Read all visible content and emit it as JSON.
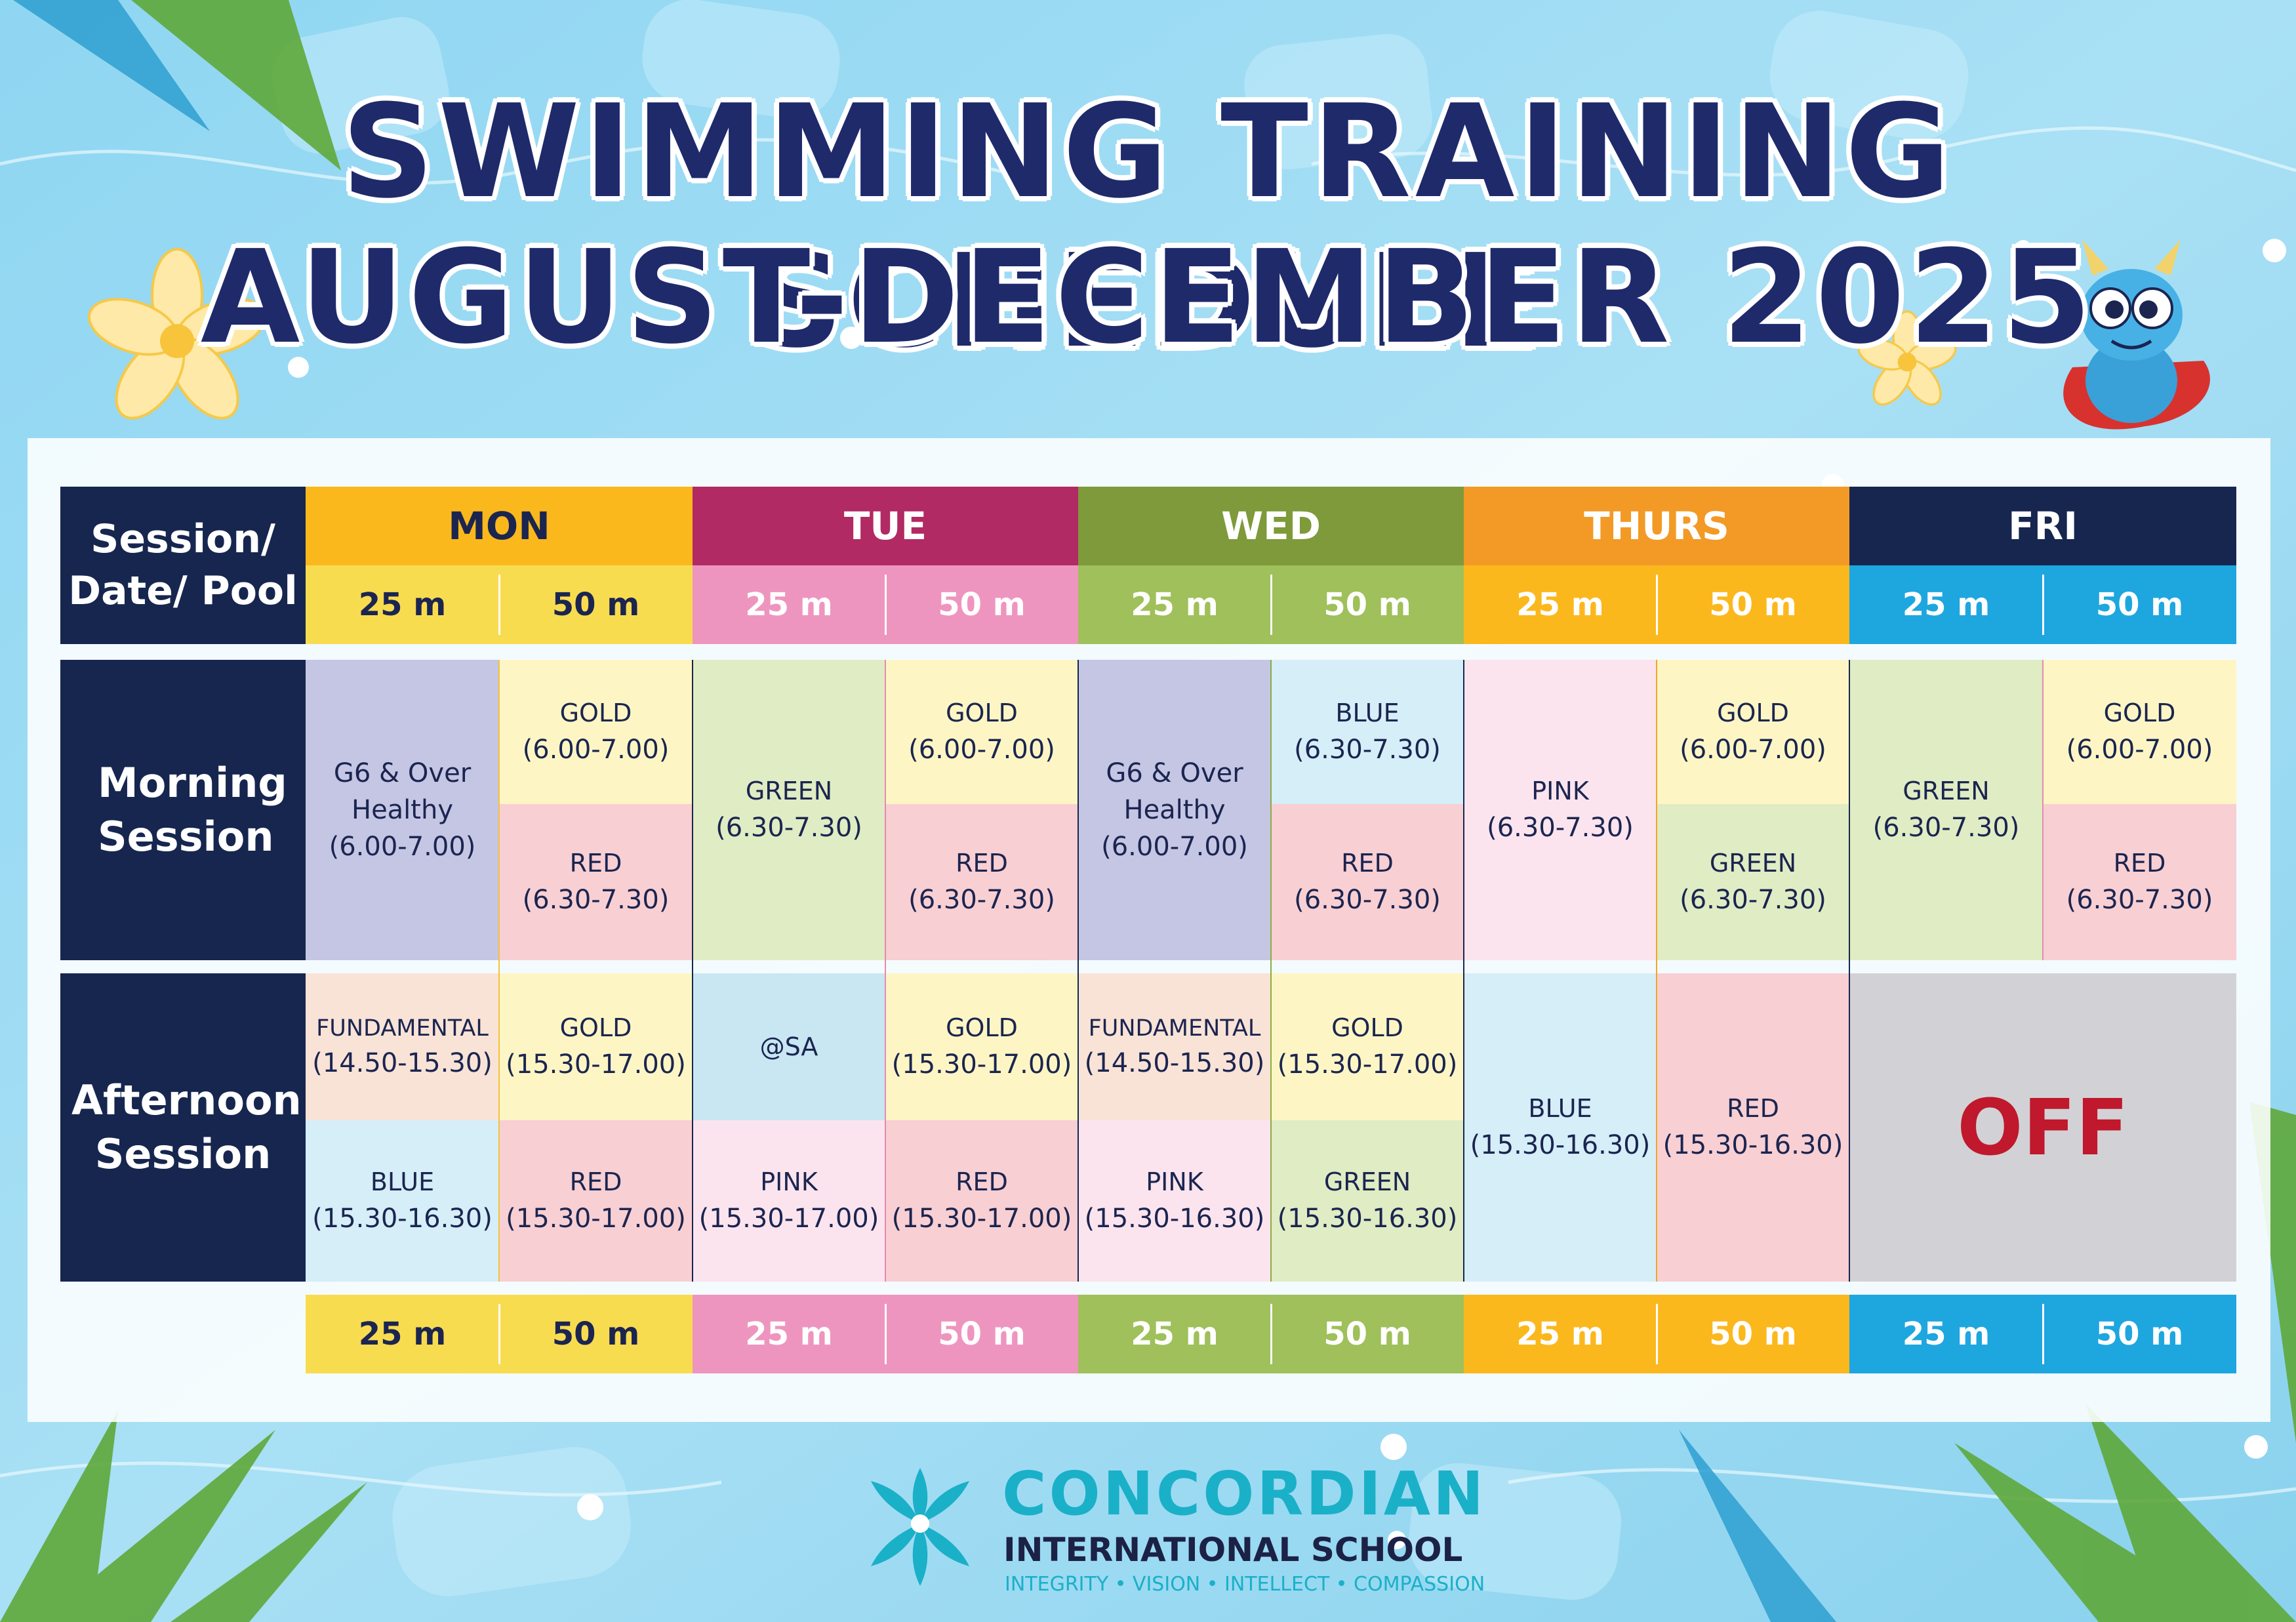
{
  "title": {
    "line1": "SWIMMING TRAINING SCHEDULE",
    "line2": "AUGUST-DECEMBER 2025"
  },
  "colors": {
    "navy": "#16264f",
    "mon_day": "#fbb81d",
    "mon_pool": "#f8dc50",
    "tue_day": "#b12a63",
    "tue_pool": "#ee95bf",
    "wed_day": "#7e9a3a",
    "wed_pool": "#9fc05a",
    "thu_day": "#f29a25",
    "thu_pool": "#fbb81d",
    "fri_day": "#16264f",
    "fri_pool": "#1ea6df",
    "lavender": "#c5c6e4",
    "pale_yellow": "#fdf6c4",
    "pale_red": "#f8cfd3",
    "pale_green": "#e0ecc3",
    "pale_blue": "#d5eef8",
    "pale_pink": "#fbe4ee",
    "pale_peach": "#f8e3d6",
    "pale_sky": "#c9e6f3",
    "off_gray": "#d2d2d6",
    "off_text": "#c0182c",
    "brand_teal": "#1ab0c8"
  },
  "table": {
    "corner_label": "Session/ Date/ Pool",
    "days": [
      "MON",
      "TUE",
      "WED",
      "THURS",
      "FRI"
    ],
    "pool_labels": [
      "25 m",
      "50 m"
    ],
    "sessions": {
      "morning": "Morning Session",
      "afternoon": "Afternoon Session"
    },
    "morning": {
      "mon_25": [
        "G6 & Over",
        "Healthy",
        "(6.00-7.00)"
      ],
      "mon_50_a": [
        "GOLD",
        "(6.00-7.00)"
      ],
      "mon_50_b": [
        "RED",
        "(6.30-7.30)"
      ],
      "tue_25": [
        "GREEN",
        "(6.30-7.30)"
      ],
      "tue_50_a": [
        "GOLD",
        "(6.00-7.00)"
      ],
      "tue_50_b": [
        "RED",
        "(6.30-7.30)"
      ],
      "wed_25": [
        "G6 & Over",
        "Healthy",
        "(6.00-7.00)"
      ],
      "wed_50_a": [
        "BLUE",
        "(6.30-7.30)"
      ],
      "wed_50_b": [
        "RED",
        "(6.30-7.30)"
      ],
      "thu_25": [
        "PINK",
        "(6.30-7.30)"
      ],
      "thu_50_a": [
        "GOLD",
        "(6.00-7.00)"
      ],
      "thu_50_b": [
        "GREEN",
        "(6.30-7.30)"
      ],
      "fri_25": [
        "GREEN",
        "(6.30-7.30)"
      ],
      "fri_50_a": [
        "GOLD",
        "(6.00-7.00)"
      ],
      "fri_50_b": [
        "RED",
        "(6.30-7.30)"
      ]
    },
    "afternoon": {
      "mon_25_a": [
        "FUNDAMENTAL",
        "(14.50-15.30)"
      ],
      "mon_25_b": [
        "BLUE",
        "(15.30-16.30)"
      ],
      "mon_50_a": [
        "GOLD",
        "(15.30-17.00)"
      ],
      "mon_50_b": [
        "RED",
        "(15.30-17.00)"
      ],
      "tue_25_a": [
        "@SA"
      ],
      "tue_25_b": [
        "PINK",
        "(15.30-17.00)"
      ],
      "tue_50_a": [
        "GOLD",
        "(15.30-17.00)"
      ],
      "tue_50_b": [
        "RED",
        "(15.30-17.00)"
      ],
      "wed_25_a": [
        "FUNDAMENTAL",
        "(14.50-15.30)"
      ],
      "wed_25_b": [
        "PINK",
        "(15.30-16.30)"
      ],
      "wed_50_a": [
        "GOLD",
        "(15.30-17.00)"
      ],
      "wed_50_b": [
        "GREEN",
        "(15.30-16.30)"
      ],
      "thu_25": [
        "BLUE",
        "(15.30-16.30)"
      ],
      "thu_50": [
        "RED",
        "(15.30-16.30)"
      ],
      "fri": "OFF"
    }
  },
  "brand": {
    "name": "CONCORDIAN",
    "subtitle": "INTERNATIONAL SCHOOL",
    "tagline": "INTEGRITY • VISION • INTELLECT • COMPASSION"
  },
  "decor_icons": [
    "plumeria-flower-icon",
    "bubble-icon",
    "palm-leaf-icon",
    "dragon-mascot-icon",
    "lotus-logo-icon"
  ]
}
